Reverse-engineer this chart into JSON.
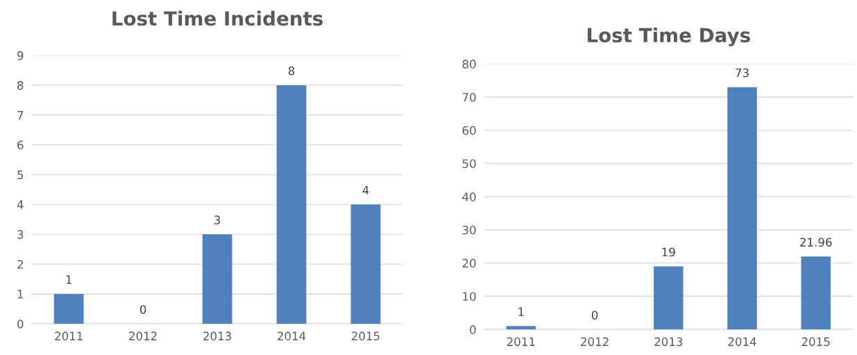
{
  "chart_data": [
    {
      "type": "bar",
      "title": "Lost Time Incidents",
      "categories": [
        "2011",
        "2012",
        "2013",
        "2014",
        "2015"
      ],
      "values": [
        1,
        0,
        3,
        8,
        4
      ],
      "color": "#4f81bd",
      "ylim": [
        0,
        9
      ],
      "yticks": [
        0,
        1,
        2,
        3,
        4,
        5,
        6,
        7,
        8,
        9
      ],
      "grid": "y",
      "data_labels": true
    },
    {
      "type": "bar",
      "title": "Lost Time Days",
      "categories": [
        "2011",
        "2012",
        "2013",
        "2014",
        "2015"
      ],
      "values": [
        1,
        0,
        19,
        73,
        21.96
      ],
      "color": "#4f81bd",
      "ylim": [
        0,
        80
      ],
      "yticks": [
        0,
        10,
        20,
        30,
        40,
        50,
        60,
        70,
        80
      ],
      "grid": "y",
      "data_labels": true
    }
  ]
}
